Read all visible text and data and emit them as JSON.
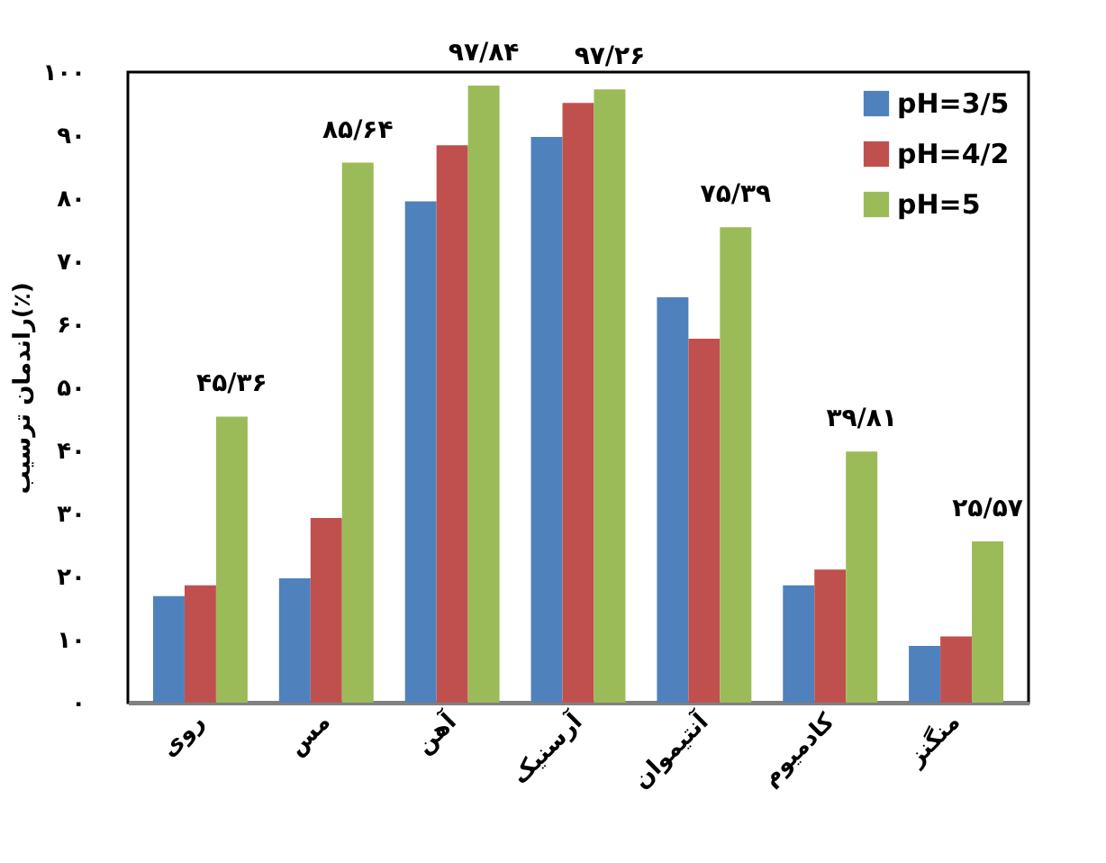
{
  "chart_data": {
    "type": "bar",
    "ylabel": "راندمان ترسیب(٪)",
    "categories": [
      "روی",
      "مس",
      "آهن",
      "آرسنیک",
      "آنتیموان",
      "کادمیوم",
      "منگنز"
    ],
    "series": [
      {
        "name": "pH=3/5",
        "color": "#4f81bd",
        "values": [
          16.9,
          19.7,
          79.5,
          89.7,
          64.3,
          18.6,
          9.0
        ]
      },
      {
        "name": "pH=4/2",
        "color": "#c0504d",
        "values": [
          18.6,
          29.3,
          88.4,
          95.1,
          57.7,
          21.1,
          10.5
        ]
      },
      {
        "name": "pH=5",
        "color": "#9bbb59",
        "values": [
          45.36,
          85.64,
          97.84,
          97.26,
          75.39,
          39.81,
          25.57
        ],
        "value_labels": [
          "۴۵/۳۶",
          "۸۵/۶۴",
          "۹۷/۸۴",
          "۹۷/۲۶",
          "۷۵/۳۹",
          "۳۹/۸۱",
          "۲۵/۵۷"
        ]
      }
    ],
    "ylim": [
      0,
      100
    ],
    "yticks": [
      {
        "value": 0,
        "label": "۰"
      },
      {
        "value": 10,
        "label": "۱۰"
      },
      {
        "value": 20,
        "label": "۲۰"
      },
      {
        "value": 30,
        "label": "۳۰"
      },
      {
        "value": 40,
        "label": "۴۰"
      },
      {
        "value": 50,
        "label": "۵۰"
      },
      {
        "value": 60,
        "label": "۶۰"
      },
      {
        "value": 70,
        "label": "۷۰"
      },
      {
        "value": 80,
        "label": "۸۰"
      },
      {
        "value": 90,
        "label": "۹۰"
      },
      {
        "value": 100,
        "label": "۱۰۰"
      }
    ],
    "grid": false,
    "legend": "top right"
  }
}
